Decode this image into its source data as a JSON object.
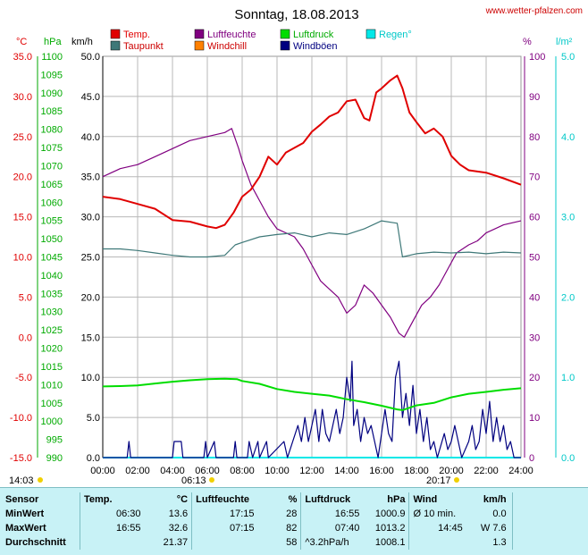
{
  "header": {
    "title": "Sonntag, 18.08.2013",
    "site": "www.wetter-pfalzen.com"
  },
  "legend": [
    {
      "label": "Temp.",
      "color": "#e00000"
    },
    {
      "label": "Luftfeuchte",
      "color": "#800080"
    },
    {
      "label": "Luftdruck",
      "color": "#00dd00"
    },
    {
      "label": "Regen°",
      "color": "#00e8e8"
    },
    {
      "label": "Taupunkt",
      "color": "#3e7878"
    },
    {
      "label": "Windchill",
      "color": "#ff8000"
    },
    {
      "label": "Windböen",
      "color": "#000080"
    }
  ],
  "axis_units": {
    "temp": "°C",
    "pressure": "hPa",
    "wind": "km/h",
    "humidity": "%",
    "rain": "l/m²"
  },
  "sun": {
    "sunrise_label": "06:13",
    "sunset_label": "20:17",
    "left_label": "14:03"
  },
  "chart_data": {
    "type": "line",
    "title": "Sonntag, 18.08.2013",
    "x_label": "",
    "x_ticks": [
      "00:00",
      "02:00",
      "04:00",
      "06:00",
      "08:00",
      "10:00",
      "12:00",
      "14:00",
      "16:00",
      "18:00",
      "20:00",
      "22:00",
      "24:00"
    ],
    "x_range_hours": [
      0,
      24
    ],
    "axes": {
      "temp_c": {
        "range": [
          -15,
          35
        ],
        "ticks": [
          "35.0",
          "30.0",
          "25.0",
          "20.0",
          "15.0",
          "10.0",
          "5.0",
          "0.0",
          "-5.0",
          "-10.0",
          "-15.0"
        ],
        "color": "#e00000"
      },
      "pressure_hpa": {
        "range": [
          990,
          1100
        ],
        "ticks": [
          "1100",
          "1095",
          "1090",
          "1085",
          "1080",
          "1075",
          "1070",
          "1065",
          "1060",
          "1055",
          "1050",
          "1045",
          "1040",
          "1035",
          "1030",
          "1025",
          "1020",
          "1015",
          "1010",
          "1005",
          "1000",
          "995",
          "990"
        ],
        "color": "#00aa00"
      },
      "wind_kmh": {
        "range": [
          0,
          50
        ],
        "ticks": [
          "50.0",
          "45.0",
          "40.0",
          "35.0",
          "30.0",
          "25.0",
          "20.0",
          "15.0",
          "10.0",
          "5.0",
          "0.0"
        ],
        "color": "#000000"
      },
      "humidity_pct": {
        "range": [
          0,
          100
        ],
        "ticks": [
          "100",
          "90",
          "80",
          "70",
          "60",
          "50",
          "40",
          "30",
          "20",
          "10",
          "0"
        ],
        "color": "#800080"
      },
      "rain_lm2": {
        "range": [
          0,
          5
        ],
        "ticks": [
          "5.0",
          "4.0",
          "3.0",
          "2.0",
          "1.0",
          "0.0"
        ],
        "color": "#00c8c8"
      }
    },
    "grid": true,
    "series": [
      {
        "name": "Temp.",
        "axis": "temp_c",
        "color": "#e00000",
        "points": [
          [
            0,
            17.5
          ],
          [
            1,
            17.2
          ],
          [
            2,
            16.6
          ],
          [
            3,
            16.0
          ],
          [
            4,
            14.6
          ],
          [
            5,
            14.4
          ],
          [
            6,
            13.8
          ],
          [
            6.5,
            13.6
          ],
          [
            7,
            14.0
          ],
          [
            7.5,
            15.5
          ],
          [
            8,
            17.5
          ],
          [
            8.5,
            18.4
          ],
          [
            9,
            20.0
          ],
          [
            9.5,
            22.5
          ],
          [
            10,
            21.5
          ],
          [
            10.5,
            23.0
          ],
          [
            11,
            23.6
          ],
          [
            11.5,
            24.2
          ],
          [
            12,
            25.6
          ],
          [
            12.5,
            26.5
          ],
          [
            13,
            27.5
          ],
          [
            13.5,
            28.0
          ],
          [
            14,
            29.4
          ],
          [
            14.5,
            29.6
          ],
          [
            15,
            27.3
          ],
          [
            15.3,
            27.0
          ],
          [
            15.7,
            30.5
          ],
          [
            16,
            31.0
          ],
          [
            16.5,
            32.0
          ],
          [
            16.9,
            32.6
          ],
          [
            17.2,
            31.0
          ],
          [
            17.6,
            28.0
          ],
          [
            18,
            26.8
          ],
          [
            18.5,
            25.4
          ],
          [
            19,
            26.0
          ],
          [
            19.5,
            25.0
          ],
          [
            20,
            22.6
          ],
          [
            20.5,
            21.5
          ],
          [
            21,
            20.8
          ],
          [
            22,
            20.5
          ],
          [
            23,
            19.8
          ],
          [
            24,
            19.0
          ]
        ]
      },
      {
        "name": "Taupunkt",
        "axis": "temp_c",
        "color": "#3e7878",
        "points": [
          [
            0,
            11.0
          ],
          [
            1,
            11.0
          ],
          [
            2,
            10.8
          ],
          [
            3,
            10.5
          ],
          [
            4,
            10.2
          ],
          [
            5,
            10.0
          ],
          [
            6,
            10.0
          ],
          [
            7,
            10.2
          ],
          [
            7.6,
            11.5
          ],
          [
            8,
            11.8
          ],
          [
            9,
            12.5
          ],
          [
            10,
            12.8
          ],
          [
            11,
            13.0
          ],
          [
            12,
            12.5
          ],
          [
            13,
            13.0
          ],
          [
            14,
            12.8
          ],
          [
            15,
            13.5
          ],
          [
            16,
            14.5
          ],
          [
            16.9,
            14.2
          ],
          [
            17.2,
            10.0
          ],
          [
            18,
            10.4
          ],
          [
            19,
            10.6
          ],
          [
            20,
            10.5
          ],
          [
            21,
            10.6
          ],
          [
            22,
            10.4
          ],
          [
            23,
            10.6
          ],
          [
            24,
            10.5
          ]
        ]
      },
      {
        "name": "Luftfeuchte",
        "axis": "humidity_pct",
        "color": "#800080",
        "points": [
          [
            0,
            70
          ],
          [
            1,
            72
          ],
          [
            2,
            73
          ],
          [
            3,
            75
          ],
          [
            4,
            77
          ],
          [
            5,
            79
          ],
          [
            6,
            80
          ],
          [
            7,
            81
          ],
          [
            7.4,
            82
          ],
          [
            7.8,
            77
          ],
          [
            8,
            74
          ],
          [
            8.5,
            68
          ],
          [
            9,
            64
          ],
          [
            9.5,
            60
          ],
          [
            10,
            57
          ],
          [
            11,
            55
          ],
          [
            11.5,
            52
          ],
          [
            12,
            48
          ],
          [
            12.5,
            44
          ],
          [
            13,
            42
          ],
          [
            13.5,
            40
          ],
          [
            14,
            36
          ],
          [
            14.5,
            38
          ],
          [
            15,
            43
          ],
          [
            15.5,
            41
          ],
          [
            16,
            38
          ],
          [
            16.5,
            35
          ],
          [
            17,
            31
          ],
          [
            17.3,
            30
          ],
          [
            17.8,
            34
          ],
          [
            18.3,
            38
          ],
          [
            18.8,
            40
          ],
          [
            19.3,
            43
          ],
          [
            19.8,
            47
          ],
          [
            20.3,
            51
          ],
          [
            21,
            53
          ],
          [
            21.5,
            54
          ],
          [
            22,
            56
          ],
          [
            23,
            58
          ],
          [
            24,
            59
          ]
        ]
      },
      {
        "name": "Luftdruck",
        "axis": "pressure_hpa",
        "color": "#00dd00",
        "points": [
          [
            0,
            1009.5
          ],
          [
            1,
            1009.6
          ],
          [
            2,
            1009.8
          ],
          [
            3,
            1010.3
          ],
          [
            4,
            1010.8
          ],
          [
            5,
            1011.2
          ],
          [
            6,
            1011.5
          ],
          [
            7,
            1011.6
          ],
          [
            7.7,
            1011.5
          ],
          [
            8,
            1011.0
          ],
          [
            9,
            1010.2
          ],
          [
            10,
            1008.8
          ],
          [
            11,
            1008.0
          ],
          [
            12,
            1007.5
          ],
          [
            13,
            1007.0
          ],
          [
            14,
            1006.0
          ],
          [
            15,
            1005.2
          ],
          [
            16,
            1004.2
          ],
          [
            16.9,
            1003.2
          ],
          [
            17.2,
            1003.0
          ],
          [
            18,
            1004.3
          ],
          [
            19,
            1005.0
          ],
          [
            20,
            1006.5
          ],
          [
            21,
            1007.5
          ],
          [
            22,
            1008.0
          ],
          [
            23,
            1008.6
          ],
          [
            24,
            1009.0
          ]
        ]
      },
      {
        "name": "Windböen",
        "axis": "wind_kmh",
        "color": "#000080",
        "points": [
          [
            0,
            0
          ],
          [
            1.4,
            0
          ],
          [
            1.5,
            2
          ],
          [
            1.6,
            0
          ],
          [
            4,
            0
          ],
          [
            4.1,
            2
          ],
          [
            4.5,
            2
          ],
          [
            4.6,
            0
          ],
          [
            5.8,
            0
          ],
          [
            5.9,
            2
          ],
          [
            6.0,
            0
          ],
          [
            6.4,
            2
          ],
          [
            6.5,
            0
          ],
          [
            7.5,
            0
          ],
          [
            7.6,
            2
          ],
          [
            7.7,
            0
          ],
          [
            8.3,
            0
          ],
          [
            8.4,
            2
          ],
          [
            8.6,
            0
          ],
          [
            8.9,
            2
          ],
          [
            9.0,
            0
          ],
          [
            9.4,
            2
          ],
          [
            9.5,
            0
          ],
          [
            10.4,
            2
          ],
          [
            10.6,
            0
          ],
          [
            11.2,
            4
          ],
          [
            11.4,
            2
          ],
          [
            11.6,
            5
          ],
          [
            11.8,
            2
          ],
          [
            12.0,
            4
          ],
          [
            12.2,
            6
          ],
          [
            12.4,
            2
          ],
          [
            12.6,
            6
          ],
          [
            12.8,
            3
          ],
          [
            13.0,
            2
          ],
          [
            13.2,
            4
          ],
          [
            13.4,
            6
          ],
          [
            13.6,
            3
          ],
          [
            13.8,
            5
          ],
          [
            14.0,
            10
          ],
          [
            14.2,
            7
          ],
          [
            14.3,
            12
          ],
          [
            14.4,
            4
          ],
          [
            14.6,
            6
          ],
          [
            14.8,
            2
          ],
          [
            15.0,
            5
          ],
          [
            15.2,
            3
          ],
          [
            15.4,
            4
          ],
          [
            15.6,
            2
          ],
          [
            15.8,
            0
          ],
          [
            16.0,
            3
          ],
          [
            16.2,
            6
          ],
          [
            16.4,
            3
          ],
          [
            16.6,
            2
          ],
          [
            16.8,
            10
          ],
          [
            17.0,
            12
          ],
          [
            17.2,
            5
          ],
          [
            17.4,
            8
          ],
          [
            17.6,
            4
          ],
          [
            17.8,
            9
          ],
          [
            18.0,
            3
          ],
          [
            18.2,
            6
          ],
          [
            18.4,
            2
          ],
          [
            18.6,
            5
          ],
          [
            18.8,
            1
          ],
          [
            19.0,
            2
          ],
          [
            19.2,
            0
          ],
          [
            19.6,
            3
          ],
          [
            19.8,
            1
          ],
          [
            20.0,
            2
          ],
          [
            20.2,
            4
          ],
          [
            20.4,
            2
          ],
          [
            20.6,
            0
          ],
          [
            21.0,
            2
          ],
          [
            21.2,
            4
          ],
          [
            21.4,
            1
          ],
          [
            21.6,
            2
          ],
          [
            21.8,
            6
          ],
          [
            22.0,
            3
          ],
          [
            22.2,
            7
          ],
          [
            22.4,
            2
          ],
          [
            22.6,
            5
          ],
          [
            22.8,
            2
          ],
          [
            23.0,
            4
          ],
          [
            23.2,
            1
          ],
          [
            23.4,
            2
          ],
          [
            23.6,
            0
          ],
          [
            24,
            0
          ]
        ]
      }
    ]
  },
  "summary": {
    "headers": {
      "sensor": "Sensor",
      "temp": "Temp.",
      "temp_unit": "°C",
      "hum": "Luftfeuchte",
      "hum_unit": "%",
      "press": "Luftdruck",
      "press_unit": "hPa",
      "wind": "Wind",
      "wind_unit": "km/h"
    },
    "rows": [
      {
        "label": "MinWert",
        "t_time": "06:30",
        "t_val": "13.6",
        "h_time": "17:15",
        "h_val": "28",
        "p_time": "16:55",
        "p_val": "1000.9",
        "w_time": "Ø 10 min.",
        "w_val": "0.0"
      },
      {
        "label": "MaxWert",
        "t_time": "16:55",
        "t_val": "32.6",
        "h_time": "07:15",
        "h_val": "82",
        "p_time": "07:40",
        "p_val": "1013.2",
        "w_time": "14:45",
        "w_val": "W 7.6"
      },
      {
        "label": "Durchschnitt",
        "t_time": "",
        "t_val": "21.37",
        "h_time": "",
        "h_val": "58",
        "p_time": "^3.2hPa/h",
        "p_val": "1008.1",
        "w_time": "",
        "w_val": "1.3"
      }
    ]
  }
}
